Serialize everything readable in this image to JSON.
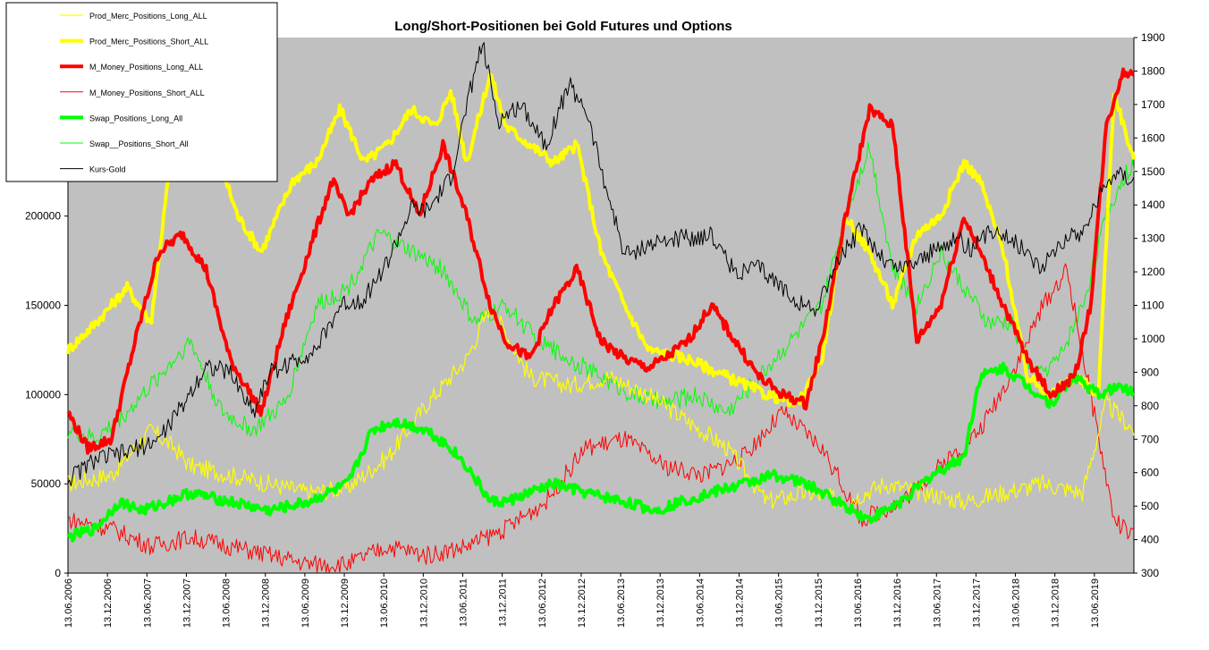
{
  "chart_data": {
    "type": "line",
    "title": "Long/Short-Positionen bei Gold Futures und Options",
    "plot_background": "#c0c0c0",
    "legend_position": "top-left",
    "y_left": {
      "min": 0,
      "max": 300000,
      "ticks": [
        0,
        50000,
        100000,
        150000,
        200000,
        250000
      ]
    },
    "y_right": {
      "min": 300,
      "max": 1900,
      "ticks": [
        300,
        400,
        500,
        600,
        700,
        800,
        900,
        1000,
        1100,
        1200,
        1300,
        1400,
        1500,
        1600,
        1700,
        1800,
        1900
      ]
    },
    "x_ticks": [
      "13.06.2006",
      "13.12.2006",
      "13.06.2007",
      "13.12.2007",
      "13.06.2008",
      "13.12.2008",
      "13.06.2009",
      "13.12.2009",
      "13.06.2010",
      "13.12.2010",
      "13.06.2011",
      "13.12.2011",
      "13.06.2012",
      "13.12.2012",
      "13.06.2013",
      "13.12.2013",
      "13.06.2014",
      "13.12.2014",
      "13.06.2015",
      "13.12.2015",
      "13.06.2016",
      "13.12.2016",
      "13.06.2017",
      "13.12.2017",
      "13.06.2018",
      "13.12.2018",
      "13.06.2019"
    ],
    "x_end": "2019.95",
    "series": [
      {
        "name": "Prod_Merc_Positions_Long_ALL",
        "axis": "left",
        "color": "#ffff00",
        "width": 1.2,
        "x": [
          2006.45,
          2007.0,
          2007.5,
          2007.8,
          2008.0,
          2008.5,
          2009.0,
          2009.5,
          2010.0,
          2010.5,
          2011.0,
          2011.5,
          2011.8,
          2012.3,
          2012.8,
          2013.3,
          2013.8,
          2014.3,
          2014.8,
          2015.3,
          2015.8,
          2016.3,
          2016.8,
          2017.3,
          2017.8,
          2018.3,
          2018.8,
          2019.3,
          2019.6,
          2019.95
        ],
        "values": [
          50000,
          55000,
          80000,
          70000,
          60000,
          55000,
          50000,
          45000,
          48000,
          65000,
          95000,
          120000,
          150000,
          110000,
          105000,
          110000,
          100000,
          85000,
          70000,
          40000,
          45000,
          40000,
          50000,
          45000,
          40000,
          45000,
          50000,
          45000,
          95000,
          80000
        ]
      },
      {
        "name": "Prod_Merc_Positions_Short_ALL",
        "axis": "left",
        "color": "#ffff00",
        "width": 4,
        "x": [
          2006.45,
          2006.8,
          2007.2,
          2007.5,
          2007.8,
          2008.0,
          2008.3,
          2008.6,
          2008.9,
          2009.3,
          2009.6,
          2009.9,
          2010.2,
          2010.5,
          2010.8,
          2011.1,
          2011.3,
          2011.5,
          2011.8,
          2012.0,
          2012.3,
          2012.6,
          2012.9,
          2013.2,
          2013.5,
          2013.8,
          2014.3,
          2014.8,
          2015.3,
          2015.7,
          2016.0,
          2016.3,
          2016.6,
          2016.9,
          2017.2,
          2017.5,
          2017.8,
          2018.0,
          2018.3,
          2018.6,
          2018.9,
          2019.2,
          2019.5,
          2019.7,
          2019.95
        ],
        "values": [
          125000,
          140000,
          160000,
          140000,
          250000,
          280000,
          240000,
          200000,
          180000,
          220000,
          230000,
          260000,
          230000,
          240000,
          260000,
          250000,
          270000,
          230000,
          280000,
          250000,
          240000,
          230000,
          240000,
          180000,
          150000,
          125000,
          120000,
          110000,
          100000,
          95000,
          120000,
          200000,
          180000,
          150000,
          190000,
          200000,
          230000,
          220000,
          180000,
          110000,
          100000,
          110000,
          100000,
          270000,
          230000
        ]
      },
      {
        "name": "M_Money_Positions_Long_ALL",
        "axis": "left",
        "color": "#ff0000",
        "width": 4,
        "x": [
          2006.45,
          2006.7,
          2007.0,
          2007.3,
          2007.6,
          2007.9,
          2008.2,
          2008.5,
          2008.9,
          2009.2,
          2009.5,
          2009.8,
          2010.0,
          2010.3,
          2010.6,
          2010.9,
          2011.2,
          2011.5,
          2011.8,
          2012.0,
          2012.3,
          2012.6,
          2012.9,
          2013.2,
          2013.5,
          2013.8,
          2014.0,
          2014.3,
          2014.6,
          2014.9,
          2015.2,
          2015.5,
          2015.8,
          2016.0,
          2016.3,
          2016.6,
          2016.9,
          2017.2,
          2017.5,
          2017.8,
          2018.0,
          2018.3,
          2018.6,
          2018.9,
          2019.2,
          2019.4,
          2019.6,
          2019.8,
          2019.95
        ],
        "values": [
          90000,
          70000,
          75000,
          130000,
          180000,
          190000,
          170000,
          120000,
          90000,
          140000,
          180000,
          220000,
          200000,
          220000,
          230000,
          200000,
          240000,
          200000,
          150000,
          130000,
          120000,
          150000,
          170000,
          130000,
          120000,
          115000,
          120000,
          130000,
          150000,
          130000,
          110000,
          100000,
          95000,
          130000,
          200000,
          260000,
          250000,
          130000,
          150000,
          200000,
          180000,
          150000,
          120000,
          100000,
          110000,
          150000,
          250000,
          280000,
          280000
        ]
      },
      {
        "name": "M_Money_Positions_Short_ALL",
        "axis": "left",
        "color": "#ff0000",
        "width": 1,
        "x": [
          2006.45,
          2007.0,
          2007.5,
          2008.0,
          2008.5,
          2009.0,
          2009.5,
          2010.0,
          2010.5,
          2011.0,
          2011.5,
          2012.0,
          2012.5,
          2013.0,
          2013.5,
          2014.0,
          2014.5,
          2015.0,
          2015.5,
          2016.0,
          2016.5,
          2017.0,
          2017.5,
          2018.0,
          2018.5,
          2018.8,
          2019.1,
          2019.4,
          2019.7,
          2019.95
        ],
        "values": [
          30000,
          25000,
          15000,
          20000,
          15000,
          10000,
          5000,
          5000,
          15000,
          10000,
          15000,
          25000,
          40000,
          70000,
          75000,
          60000,
          55000,
          65000,
          90000,
          70000,
          30000,
          40000,
          60000,
          80000,
          120000,
          150000,
          170000,
          100000,
          30000,
          20000
        ]
      },
      {
        "name": "Swap_Positions_Long_All",
        "axis": "left",
        "color": "#00ff00",
        "width": 4,
        "x": [
          2006.45,
          2006.8,
          2007.1,
          2007.4,
          2007.7,
          2008.0,
          2008.5,
          2009.0,
          2009.5,
          2010.0,
          2010.3,
          2010.6,
          2011.0,
          2011.3,
          2011.5,
          2011.8,
          2012.0,
          2012.3,
          2012.6,
          2013.0,
          2013.5,
          2013.9,
          2014.2,
          2014.6,
          2015.0,
          2015.4,
          2015.8,
          2016.2,
          2016.6,
          2017.0,
          2017.4,
          2017.8,
          2018.0,
          2018.3,
          2018.6,
          2018.9,
          2019.2,
          2019.5,
          2019.8,
          2019.95
        ],
        "values": [
          20000,
          25000,
          40000,
          35000,
          40000,
          45000,
          40000,
          35000,
          40000,
          50000,
          80000,
          85000,
          80000,
          70000,
          60000,
          40000,
          40000,
          45000,
          50000,
          45000,
          40000,
          35000,
          40000,
          45000,
          50000,
          55000,
          50000,
          40000,
          30000,
          40000,
          55000,
          65000,
          110000,
          115000,
          105000,
          95000,
          110000,
          100000,
          105000,
          100000
        ]
      },
      {
        "name": "Swap__Positions_Short_All",
        "axis": "left",
        "color": "#00ff00",
        "width": 1,
        "x": [
          2006.45,
          2006.8,
          2007.2,
          2007.6,
          2008.0,
          2008.4,
          2008.8,
          2009.2,
          2009.6,
          2010.0,
          2010.4,
          2010.8,
          2011.2,
          2011.6,
          2012.0,
          2012.4,
          2012.8,
          2013.2,
          2013.6,
          2014.0,
          2014.4,
          2014.8,
          2015.2,
          2015.6,
          2016.0,
          2016.3,
          2016.6,
          2016.9,
          2017.2,
          2017.5,
          2017.8,
          2018.1,
          2018.4,
          2018.7,
          2019.0,
          2019.3,
          2019.6,
          2019.8,
          2019.95
        ],
        "values": [
          80000,
          75000,
          90000,
          110000,
          130000,
          90000,
          80000,
          95000,
          150000,
          160000,
          190000,
          180000,
          170000,
          140000,
          150000,
          130000,
          120000,
          110000,
          100000,
          95000,
          100000,
          90000,
          110000,
          130000,
          150000,
          200000,
          240000,
          170000,
          150000,
          180000,
          160000,
          140000,
          140000,
          110000,
          120000,
          150000,
          200000,
          220000,
          230000
        ]
      },
      {
        "name": "Kurs-Gold",
        "axis": "right",
        "color": "#000000",
        "width": 1,
        "x": [
          2006.45,
          2006.8,
          2007.2,
          2007.6,
          2007.9,
          2008.2,
          2008.5,
          2008.8,
          2009.0,
          2009.3,
          2009.6,
          2009.9,
          2010.2,
          2010.5,
          2010.8,
          2011.0,
          2011.3,
          2011.6,
          2011.7,
          2011.9,
          2012.2,
          2012.5,
          2012.8,
          2013.0,
          2013.3,
          2013.5,
          2013.8,
          2014.2,
          2014.6,
          2014.9,
          2015.2,
          2015.5,
          2015.9,
          2016.2,
          2016.5,
          2016.8,
          2017.0,
          2017.4,
          2017.7,
          2017.9,
          2018.2,
          2018.5,
          2018.8,
          2019.0,
          2019.3,
          2019.5,
          2019.7,
          2019.95
        ],
        "values": [
          580,
          640,
          660,
          700,
          800,
          920,
          900,
          780,
          900,
          930,
          970,
          1100,
          1120,
          1230,
          1390,
          1380,
          1480,
          1800,
          1880,
          1650,
          1700,
          1580,
          1760,
          1690,
          1420,
          1250,
          1280,
          1300,
          1310,
          1200,
          1210,
          1150,
          1080,
          1230,
          1330,
          1230,
          1210,
          1260,
          1300,
          1270,
          1330,
          1280,
          1210,
          1290,
          1320,
          1420,
          1500,
          1480
        ]
      }
    ]
  }
}
